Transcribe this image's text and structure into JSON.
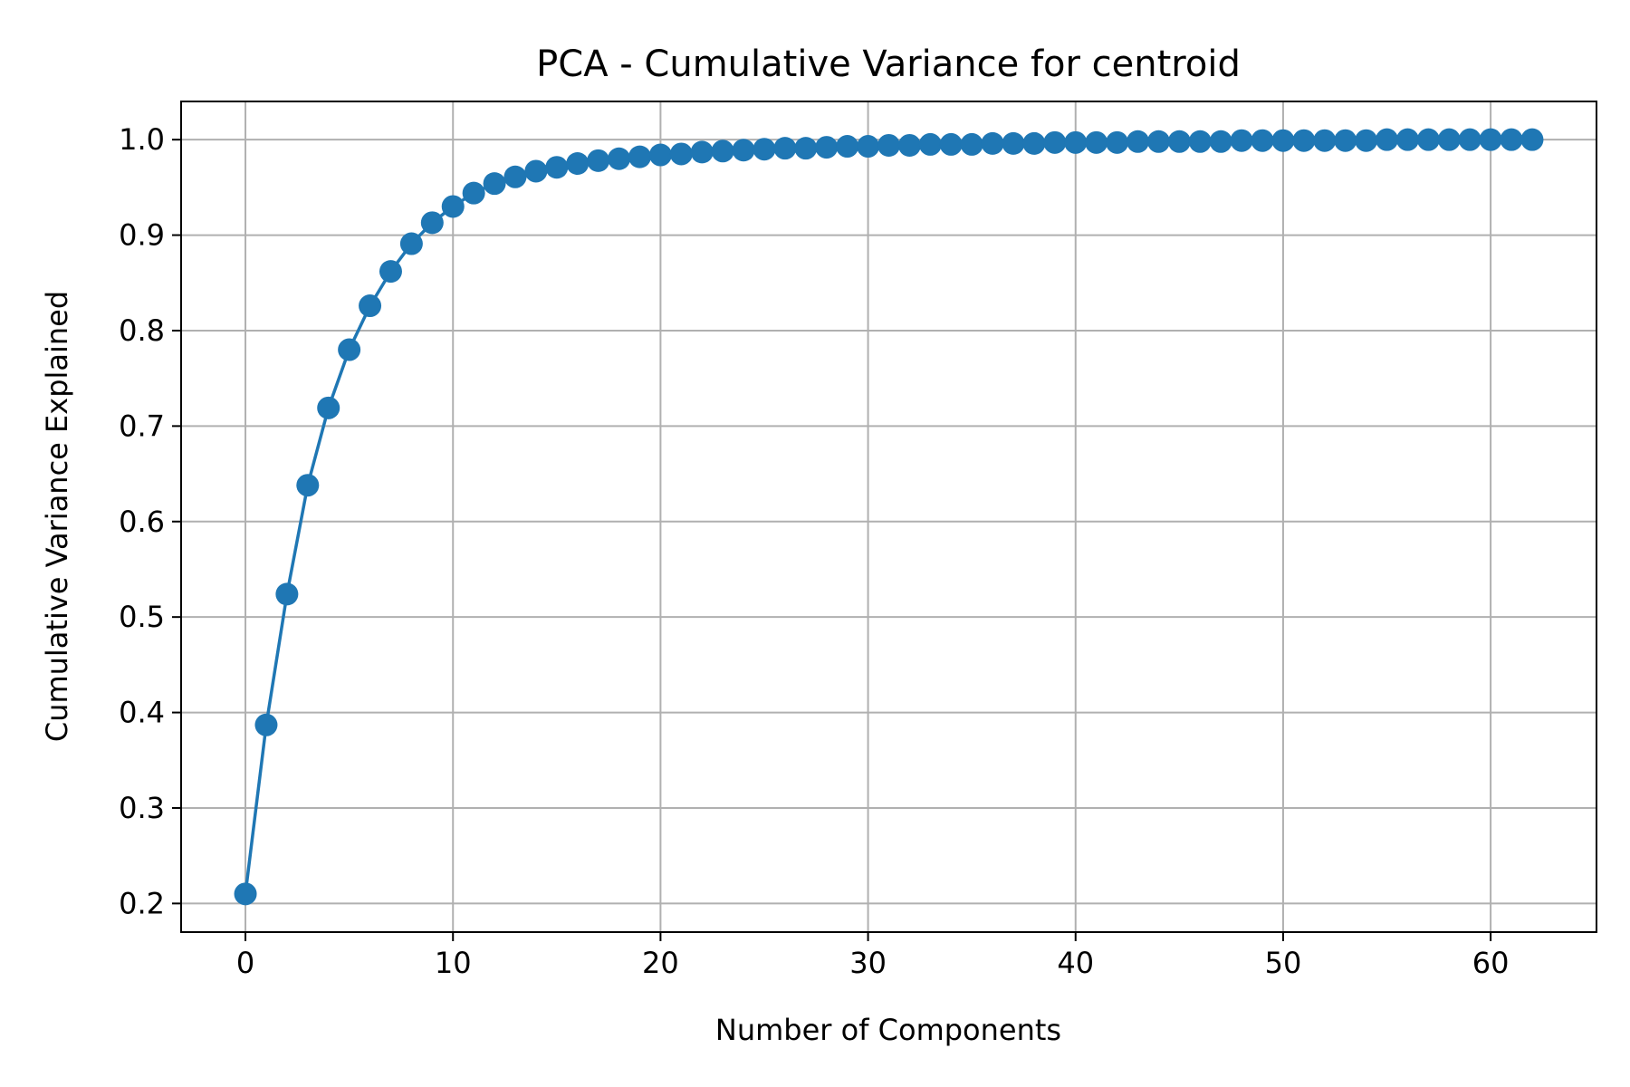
{
  "chart_data": {
    "type": "line",
    "title": "PCA - Cumulative Variance for centroid",
    "xlabel": "Number of Components",
    "ylabel": "Cumulative Variance Explained",
    "xlim": [
      -3.1,
      65.1
    ],
    "ylim": [
      0.17,
      1.04
    ],
    "grid": true,
    "marker": "circle",
    "colors": {
      "series": "#1f77b4",
      "grid": "#b0b0b0",
      "axis": "#000000"
    },
    "x_ticks": [
      0,
      10,
      20,
      30,
      40,
      50,
      60
    ],
    "y_ticks": [
      0.2,
      0.3,
      0.4,
      0.5,
      0.6,
      0.7,
      0.8,
      0.9,
      1.0
    ],
    "x_tick_labels": [
      "0",
      "10",
      "20",
      "30",
      "40",
      "50",
      "60"
    ],
    "y_tick_labels": [
      "0.2",
      "0.3",
      "0.4",
      "0.5",
      "0.6",
      "0.7",
      "0.8",
      "0.9",
      "1.0"
    ],
    "series": [
      {
        "x": [
          0,
          1,
          2,
          3,
          4,
          5,
          6,
          7,
          8,
          9,
          10,
          11,
          12,
          13,
          14,
          15,
          16,
          17,
          18,
          19,
          20,
          21,
          22,
          23,
          24,
          25,
          26,
          27,
          28,
          29,
          30,
          31,
          32,
          33,
          34,
          35,
          36,
          37,
          38,
          39,
          40,
          41,
          42,
          43,
          44,
          45,
          46,
          47,
          48,
          49,
          50,
          51,
          52,
          53,
          54,
          55,
          56,
          57,
          58,
          59,
          60,
          61,
          62
        ],
        "y": [
          0.21,
          0.387,
          0.524,
          0.638,
          0.719,
          0.78,
          0.826,
          0.862,
          0.891,
          0.913,
          0.93,
          0.944,
          0.954,
          0.961,
          0.967,
          0.971,
          0.975,
          0.978,
          0.98,
          0.982,
          0.984,
          0.985,
          0.987,
          0.988,
          0.989,
          0.99,
          0.991,
          0.991,
          0.992,
          0.993,
          0.993,
          0.994,
          0.994,
          0.995,
          0.995,
          0.995,
          0.996,
          0.996,
          0.996,
          0.997,
          0.997,
          0.997,
          0.997,
          0.998,
          0.998,
          0.998,
          0.998,
          0.998,
          0.999,
          0.999,
          0.999,
          0.999,
          0.999,
          0.999,
          0.999,
          1.0,
          1.0,
          1.0,
          1.0,
          1.0,
          1.0,
          1.0,
          1.0
        ]
      }
    ]
  }
}
